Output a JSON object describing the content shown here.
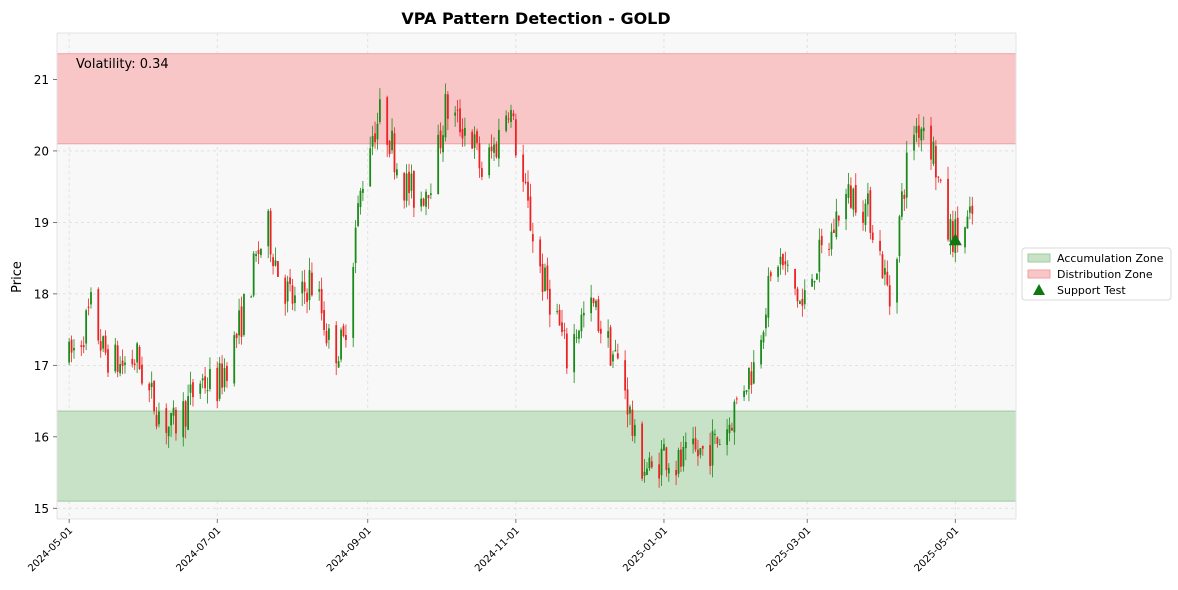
{
  "chart_data": {
    "type": "candlestick",
    "title": "VPA Pattern Detection - GOLD",
    "ylabel": "Price",
    "xlabel": "",
    "ylim": [
      14.85,
      21.65
    ],
    "xlim": [
      "2024-04-26",
      "2025-05-26"
    ],
    "yticks": [
      15,
      16,
      17,
      18,
      19,
      20,
      21
    ],
    "xticks": [
      "2024-05-01",
      "2024-07-01",
      "2024-09-01",
      "2024-11-01",
      "2025-01-01",
      "2025-03-01",
      "2025-05-01"
    ],
    "grid": true,
    "legend_position": "center-right",
    "annotation": "Volatility: 0.34",
    "zones": [
      {
        "name": "Accumulation Zone",
        "y_low": 15.1,
        "y_high": 16.36,
        "color": "#c8e2c8"
      },
      {
        "name": "Distribution Zone",
        "y_low": 20.1,
        "y_high": 21.36,
        "color": "#f9c6c8"
      }
    ],
    "markers": [
      {
        "name": "Support Test",
        "date": "2025-05-01",
        "y": 18.75,
        "color": "#107810",
        "shape": "triangle-up"
      }
    ],
    "colors": {
      "up": "#1a8a1a",
      "down": "#ee2222"
    },
    "anchors": [
      [
        "2024-05-01",
        17.1
      ],
      [
        "2024-05-06",
        17.4
      ],
      [
        "2024-05-10",
        17.8
      ],
      [
        "2024-05-15",
        17.2
      ],
      [
        "2024-05-22",
        17.0
      ],
      [
        "2024-05-29",
        17.1
      ],
      [
        "2024-06-03",
        16.6
      ],
      [
        "2024-06-08",
        16.3
      ],
      [
        "2024-06-12",
        16.1
      ],
      [
        "2024-06-18",
        16.4
      ],
      [
        "2024-06-24",
        16.8
      ],
      [
        "2024-07-01",
        16.7
      ],
      [
        "2024-07-08",
        17.3
      ],
      [
        "2024-07-13",
        17.9
      ],
      [
        "2024-07-18",
        18.6
      ],
      [
        "2024-07-22",
        18.9
      ],
      [
        "2024-07-27",
        18.2
      ],
      [
        "2024-08-03",
        17.8
      ],
      [
        "2024-08-08",
        18.2
      ],
      [
        "2024-08-12",
        17.9
      ],
      [
        "2024-08-17",
        17.2
      ],
      [
        "2024-08-22",
        17.3
      ],
      [
        "2024-08-27",
        18.9
      ],
      [
        "2024-09-01",
        20.1
      ],
      [
        "2024-09-06",
        20.5
      ],
      [
        "2024-09-10",
        20.2
      ],
      [
        "2024-09-15",
        19.6
      ],
      [
        "2024-09-22",
        19.3
      ],
      [
        "2024-09-29",
        19.8
      ],
      [
        "2024-10-03",
        20.6
      ],
      [
        "2024-10-08",
        20.4
      ],
      [
        "2024-10-13",
        20.3
      ],
      [
        "2024-10-18",
        19.7
      ],
      [
        "2024-10-24",
        20.1
      ],
      [
        "2024-10-29",
        20.7
      ],
      [
        "2024-11-03",
        19.7
      ],
      [
        "2024-11-07",
        19.0
      ],
      [
        "2024-11-12",
        18.2
      ],
      [
        "2024-11-17",
        17.8
      ],
      [
        "2024-11-22",
        17.1
      ],
      [
        "2024-11-27",
        17.6
      ],
      [
        "2024-12-03",
        17.8
      ],
      [
        "2024-12-09",
        17.3
      ],
      [
        "2024-12-15",
        16.9
      ],
      [
        "2024-12-21",
        15.7
      ],
      [
        "2024-12-27",
        15.5
      ],
      [
        "2025-01-01",
        15.8
      ],
      [
        "2025-01-06",
        15.6
      ],
      [
        "2025-01-12",
        15.7
      ],
      [
        "2025-01-17",
        15.8
      ],
      [
        "2025-01-22",
        15.9
      ],
      [
        "2025-01-28",
        16.2
      ],
      [
        "2025-02-02",
        16.7
      ],
      [
        "2025-02-07",
        17.0
      ],
      [
        "2025-02-12",
        17.9
      ],
      [
        "2025-02-17",
        18.5
      ],
      [
        "2025-02-22",
        18.2
      ],
      [
        "2025-02-27",
        17.8
      ],
      [
        "2025-03-04",
        18.4
      ],
      [
        "2025-03-10",
        18.7
      ],
      [
        "2025-03-15",
        19.3
      ],
      [
        "2025-03-21",
        19.4
      ],
      [
        "2025-03-27",
        19.1
      ],
      [
        "2025-04-01",
        18.4
      ],
      [
        "2025-04-04",
        17.9
      ],
      [
        "2025-04-09",
        19.3
      ],
      [
        "2025-04-13",
        20.3
      ],
      [
        "2025-04-18",
        20.4
      ],
      [
        "2025-04-22",
        20.0
      ],
      [
        "2025-04-27",
        18.9
      ],
      [
        "2025-05-02",
        18.8
      ],
      [
        "2025-05-07",
        19.0
      ],
      [
        "2025-05-08",
        19.1
      ]
    ]
  }
}
